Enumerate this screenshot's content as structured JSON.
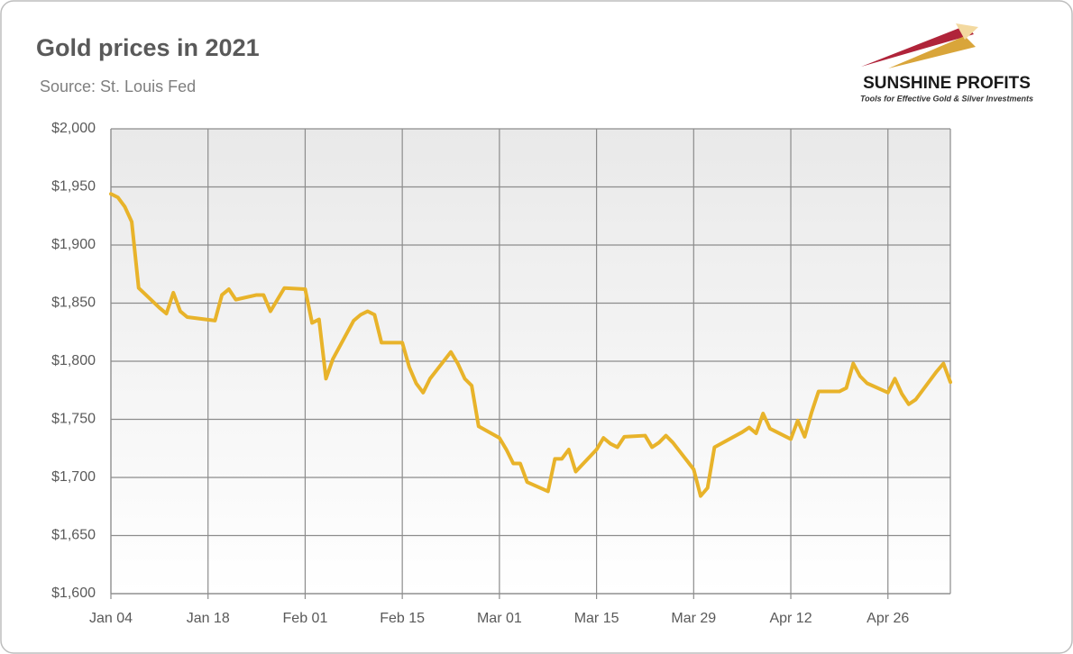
{
  "chart_data": {
    "type": "line",
    "title": "Gold prices in 2021",
    "subtitle": "Source: St. Louis Fed",
    "brand": "SUNSHINE PROFITS",
    "tagline": "Tools for Effective Gold & Silver Investments",
    "x": [
      4,
      5,
      6,
      7,
      8,
      11,
      12,
      13,
      14,
      15,
      19,
      20,
      21,
      22,
      25,
      26,
      27,
      28,
      29,
      32,
      33,
      34,
      35,
      36,
      39,
      40,
      41,
      42,
      43,
      46,
      47,
      48,
      49,
      50,
      53,
      54,
      55,
      56,
      57,
      60,
      61,
      62,
      63,
      64,
      67,
      68,
      69,
      70,
      71,
      74,
      75,
      76,
      77,
      78,
      81,
      82,
      83,
      84,
      85,
      88,
      89,
      90,
      91,
      95,
      96,
      97,
      98,
      99,
      102,
      103,
      104,
      105,
      106,
      109,
      110,
      111,
      112,
      113,
      116,
      117,
      118,
      119,
      120,
      123,
      124,
      125
    ],
    "series": [
      {
        "name": "Gold price",
        "color": "#e8b32a",
        "values": [
          1944,
          1941,
          1933,
          1920,
          1863,
          1846,
          1841,
          1859,
          1843,
          1838,
          1835,
          1857,
          1862,
          1853,
          1857,
          1857,
          1843,
          1853,
          1863,
          1862,
          1833,
          1836,
          1785,
          1802,
          1835,
          1840,
          1843,
          1840,
          1816,
          1816,
          1795,
          1781,
          1773,
          1785,
          1808,
          1798,
          1785,
          1779,
          1744,
          1734,
          1724,
          1712,
          1712,
          1696,
          1688,
          1716,
          1716,
          1724,
          1705,
          1724,
          1734,
          1729,
          1726,
          1735,
          1736,
          1726,
          1730,
          1736,
          1730,
          1707,
          1684,
          1691,
          1726,
          1739,
          1743,
          1738,
          1755,
          1742,
          1733,
          1749,
          1735,
          1756,
          1774,
          1774,
          1777,
          1798,
          1787,
          1781,
          1773,
          1785,
          1772,
          1763,
          1767,
          1791,
          1798,
          1782
        ]
      }
    ],
    "xlim": [
      4,
      125
    ],
    "xticks": [
      {
        "value": 4,
        "label": "Jan 04"
      },
      {
        "value": 18,
        "label": "Jan 18"
      },
      {
        "value": 32,
        "label": "Feb 01"
      },
      {
        "value": 46,
        "label": "Feb 15"
      },
      {
        "value": 60,
        "label": "Mar 01"
      },
      {
        "value": 74,
        "label": "Mar 15"
      },
      {
        "value": 88,
        "label": "Mar 29"
      },
      {
        "value": 102,
        "label": "Apr 12"
      },
      {
        "value": 116,
        "label": "Apr 26"
      }
    ],
    "ylim": [
      1600,
      2000
    ],
    "yticks": [
      {
        "value": 1600,
        "label": "$1,600"
      },
      {
        "value": 1650,
        "label": "$1,650"
      },
      {
        "value": 1700,
        "label": "$1,700"
      },
      {
        "value": 1750,
        "label": "$1,750"
      },
      {
        "value": 1800,
        "label": "$1,800"
      },
      {
        "value": 1850,
        "label": "$1,850"
      },
      {
        "value": 1900,
        "label": "$1,900"
      },
      {
        "value": 1950,
        "label": "$1,950"
      },
      {
        "value": 2000,
        "label": "$2,000"
      }
    ],
    "grid": true
  }
}
